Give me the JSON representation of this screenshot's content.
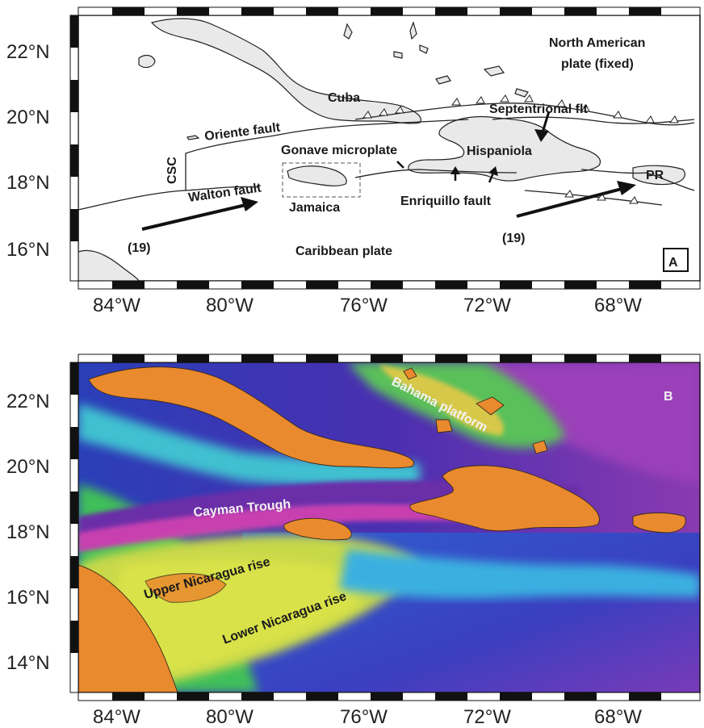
{
  "map_a": {
    "panel_label": "A",
    "labels": {
      "north_american_1": "North American",
      "north_american_2": "plate (fixed)",
      "cuba": "Cuba",
      "septentrional": "Septentrional flt",
      "oriente": "Oriente fault",
      "gonave": "Gonave microplate",
      "hispaniola": "Hispaniola",
      "csc": "CSC",
      "walton": "Walton fault",
      "jamaica": "Jamaica",
      "enriquillo": "Enriquillo fault",
      "pr": "PR",
      "rate_left": "(19)",
      "rate_right": "(19)",
      "caribbean": "Caribbean plate"
    },
    "lat_ticks": [
      "22°N",
      "20°N",
      "18°N",
      "16°N"
    ],
    "lon_ticks": [
      "84°W",
      "80°W",
      "76°W",
      "72°W",
      "68°W"
    ]
  },
  "map_b": {
    "panel_label": "B",
    "labels": {
      "bahama": "Bahama platform",
      "cayman": "Cayman Trough",
      "upper_nic": "Upper Nicaragua rise",
      "lower_nic": "Lower Nicaragua rise"
    },
    "lat_ticks": [
      "22°N",
      "20°N",
      "18°N",
      "16°N",
      "14°N"
    ],
    "lon_ticks": [
      "84°W",
      "80°W",
      "76°W",
      "72°W",
      "68°W"
    ]
  }
}
